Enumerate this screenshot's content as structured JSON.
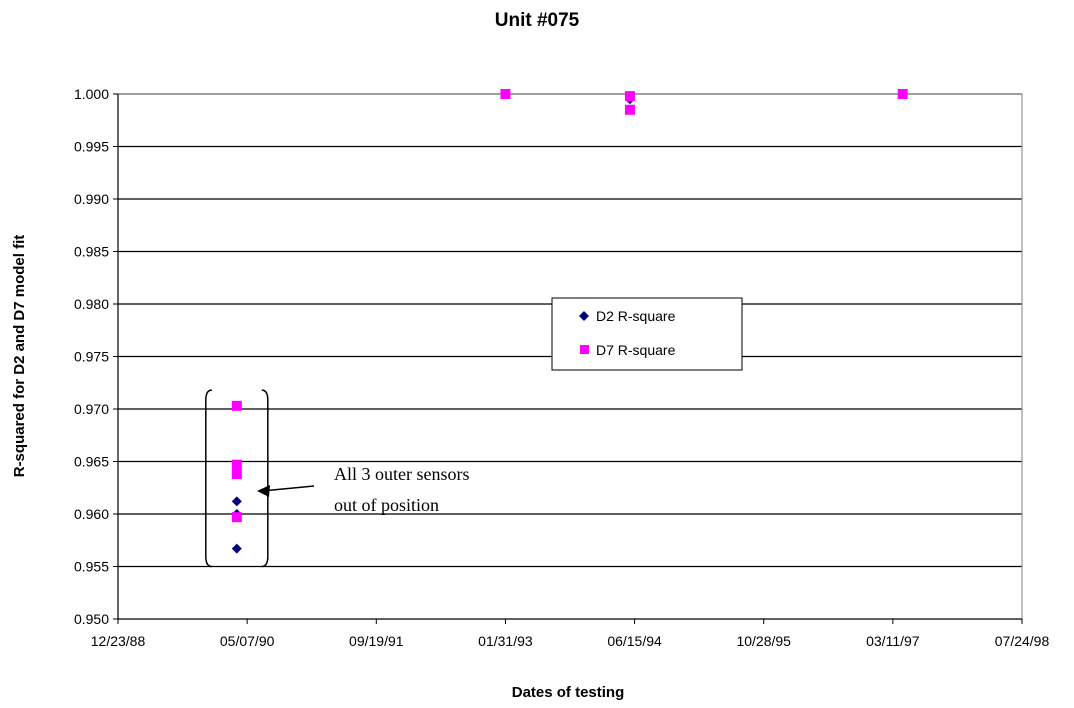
{
  "chart_data": {
    "type": "scatter",
    "title": "Unit #075",
    "xlabel": "Dates of testing",
    "ylabel": "R-squared for D2 and D7 model fit",
    "x_axis": {
      "type": "date",
      "min": "1988-12-23",
      "max": "1998-07-24",
      "tick_labels": [
        "12/23/88",
        "05/07/90",
        "09/19/91",
        "01/31/93",
        "06/15/94",
        "10/28/95",
        "03/11/97",
        "07/24/98"
      ]
    },
    "ylim": [
      0.95,
      1.0
    ],
    "y_ticks": [
      "0.950",
      "0.955",
      "0.960",
      "0.965",
      "0.970",
      "0.975",
      "0.980",
      "0.985",
      "0.990",
      "0.995",
      "1.000"
    ],
    "grid": "horizontal",
    "legend_position": "center-right",
    "series": [
      {
        "name": "D2 R-square",
        "marker": "diamond",
        "color": "#000080",
        "points": [
          {
            "x": "1990-03-28",
            "y": 0.9612
          },
          {
            "x": "1990-03-28",
            "y": 0.96
          },
          {
            "x": "1990-03-28",
            "y": 0.9567
          },
          {
            "x": "1993-01-31",
            "y": 1.0
          },
          {
            "x": "1994-05-28",
            "y": 0.9998
          },
          {
            "x": "1994-05-28",
            "y": 0.9995
          },
          {
            "x": "1997-04-18",
            "y": 1.0
          }
        ]
      },
      {
        "name": "D7 R-square",
        "marker": "square",
        "color": "#ff00ff",
        "points": [
          {
            "x": "1990-03-28",
            "y": 0.9703
          },
          {
            "x": "1990-03-28",
            "y": 0.9647
          },
          {
            "x": "1990-03-28",
            "y": 0.9638
          },
          {
            "x": "1990-03-28",
            "y": 0.9597
          },
          {
            "x": "1993-01-31",
            "y": 1.0
          },
          {
            "x": "1994-05-28",
            "y": 0.9998
          },
          {
            "x": "1994-05-28",
            "y": 0.9985
          },
          {
            "x": "1997-04-18",
            "y": 1.0
          }
        ]
      }
    ],
    "annotation": {
      "lines": [
        "All 3 outer sensors",
        "out of position"
      ]
    }
  }
}
